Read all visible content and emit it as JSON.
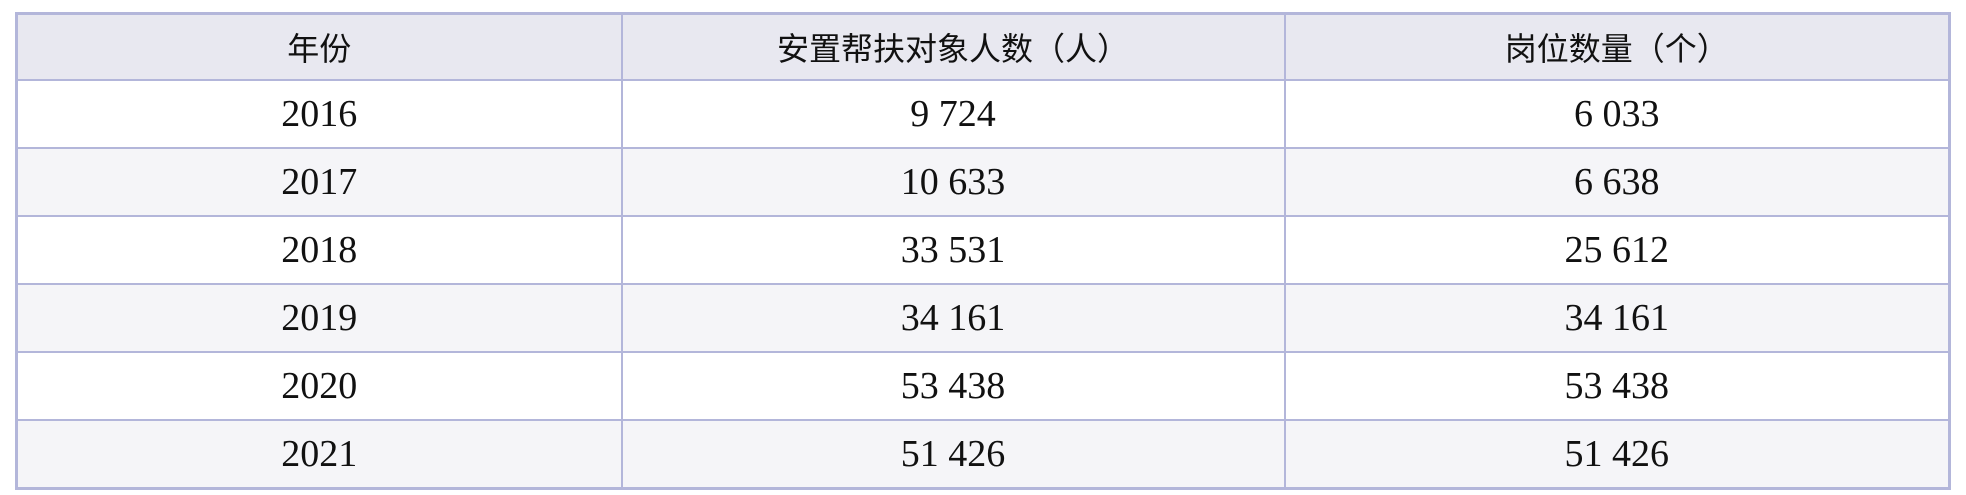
{
  "table": {
    "headers": [
      "年份",
      "安置帮扶对象人数（人）",
      "岗位数量（个）"
    ],
    "rows": [
      [
        "2016",
        "9 724",
        "6 033"
      ],
      [
        "2017",
        "10 633",
        "6 638"
      ],
      [
        "2018",
        "33 531",
        "25 612"
      ],
      [
        "2019",
        "34 161",
        "34 161"
      ],
      [
        "2020",
        "53 438",
        "53 438"
      ],
      [
        "2021",
        "51 426",
        "51 426"
      ]
    ]
  },
  "colors": {
    "border": "#b3b6da",
    "header_bg": "#e8e8f0",
    "alt_row_bg": "#f5f5f8"
  }
}
